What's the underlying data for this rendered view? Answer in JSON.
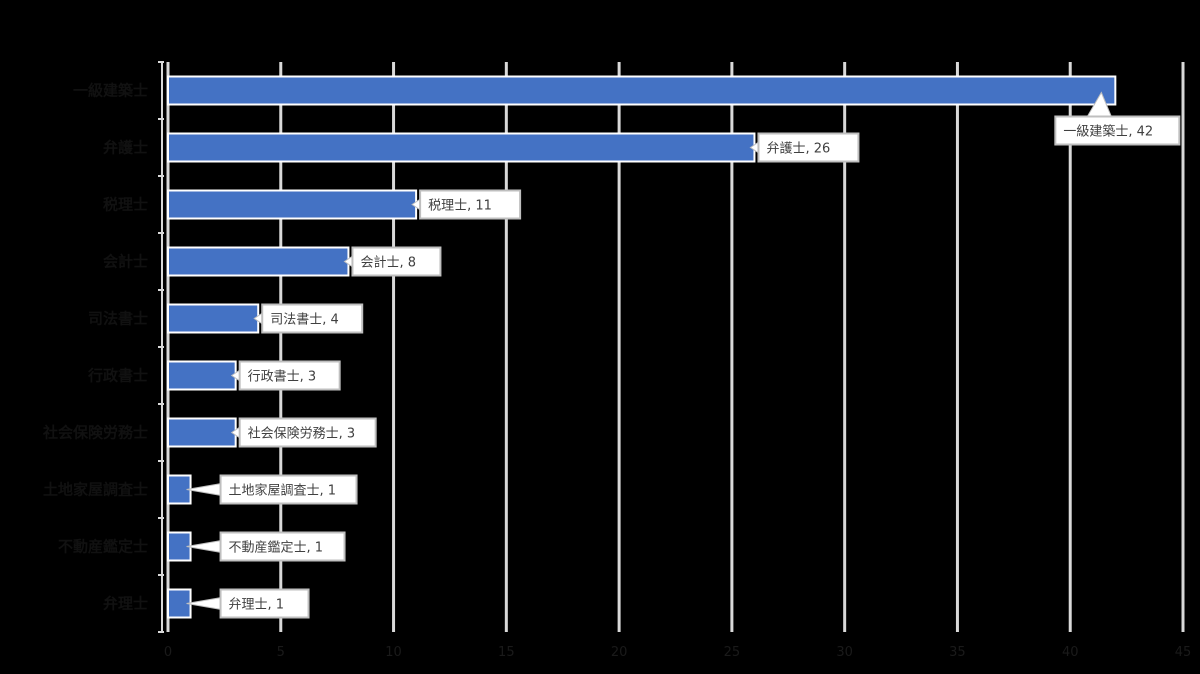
{
  "chart_data": {
    "type": "bar",
    "orientation": "horizontal",
    "title": "",
    "xlabel": "",
    "ylabel": "",
    "xlim": [
      0,
      45
    ],
    "x_ticks": [
      0,
      5,
      10,
      15,
      20,
      25,
      30,
      35,
      40,
      45
    ],
    "grid": "vertical",
    "bar_color": "#4472C4",
    "categories": [
      "一級建築士",
      "弁護士",
      "税理士",
      "会計士",
      "司法書士",
      "行政書士",
      "社会保険労務士",
      "土地家屋調査士",
      "不動産鑑定士",
      "弁理士"
    ],
    "values": [
      42,
      26,
      11,
      8,
      4,
      3,
      3,
      1,
      1,
      1
    ],
    "data_labels": [
      "一級建築士, 42",
      "弁護士, 26",
      "税理士, 11",
      "会計士, 8",
      "司法書士, 4",
      "行政書士, 3",
      "社会保険労務士, 3",
      "土地家屋調査士, 1",
      "不動産鑑定士, 1",
      "弁理士, 1"
    ]
  },
  "colors": {
    "background": "#000000",
    "bar": "#4472C4",
    "gridline": "#d9d9d9",
    "callout_fill": "#ffffff",
    "callout_border": "#bfbfbf",
    "callout_text": "#404040"
  }
}
